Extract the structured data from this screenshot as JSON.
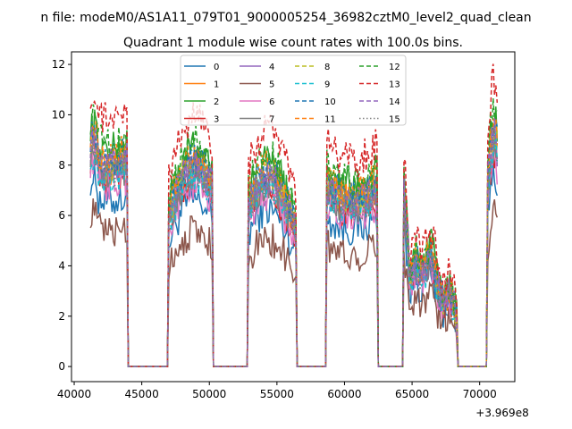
{
  "chart_data": {
    "type": "line",
    "suptitle": "n file: modeM0/AS1A11_079T01_9000005254_36982cztM0_level2_quad_clean",
    "title": "Quadrant 1 module wise count rates with 100.0s bins.",
    "xlabel": "",
    "ylabel": "",
    "x_offset_label": "+3.969e8",
    "xlim": [
      39800,
      72600
    ],
    "ylim": [
      -0.6,
      12.5
    ],
    "xticks": [
      40000,
      45000,
      50000,
      55000,
      60000,
      65000,
      70000
    ],
    "yticks": [
      0,
      2,
      4,
      6,
      8,
      10,
      12
    ],
    "grid": false,
    "legend": {
      "placement": "top-center",
      "ncols": 4
    },
    "segments": [
      {
        "x_start": 41200,
        "x_end": 43900
      },
      {
        "x_start": 47000,
        "x_end": 50200
      },
      {
        "x_start": 52900,
        "x_end": 56400
      },
      {
        "x_start": 58700,
        "x_end": 62400
      },
      {
        "x_start": 64400,
        "x_end": 68300
      },
      {
        "x_start": 70600,
        "x_end": 71300
      }
    ],
    "series": [
      {
        "name": "0",
        "color": "#1f77b4",
        "dash": "solid",
        "level": 0.8
      },
      {
        "name": "1",
        "color": "#ff7f0e",
        "dash": "solid",
        "level": 0.96
      },
      {
        "name": "2",
        "color": "#2ca02c",
        "dash": "solid",
        "level": 1.05
      },
      {
        "name": "3",
        "color": "#d62728",
        "dash": "solid",
        "level": 0.9
      },
      {
        "name": "4",
        "color": "#9467bd",
        "dash": "solid",
        "level": 0.95
      },
      {
        "name": "5",
        "color": "#8c564b",
        "dash": "solid",
        "level": 0.65
      },
      {
        "name": "6",
        "color": "#e377c2",
        "dash": "solid",
        "level": 0.88
      },
      {
        "name": "7",
        "color": "#7f7f7f",
        "dash": "solid",
        "level": 0.93
      },
      {
        "name": "8",
        "color": "#bcbd22",
        "dash": "dashed",
        "level": 0.98
      },
      {
        "name": "9",
        "color": "#17becf",
        "dash": "dashed",
        "level": 0.92
      },
      {
        "name": "10",
        "color": "#1f77b4",
        "dash": "dashed",
        "level": 1.0
      },
      {
        "name": "11",
        "color": "#ff7f0e",
        "dash": "dashed",
        "level": 1.02
      },
      {
        "name": "12",
        "color": "#2ca02c",
        "dash": "dashed",
        "level": 1.08
      },
      {
        "name": "13",
        "color": "#d62728",
        "dash": "dashed",
        "level": 1.2
      },
      {
        "name": "14",
        "color": "#9467bd",
        "dash": "dashed",
        "level": 0.97
      },
      {
        "name": "15",
        "color": "#7f7f7f",
        "dash": "dotted",
        "level": 0.94
      }
    ]
  }
}
